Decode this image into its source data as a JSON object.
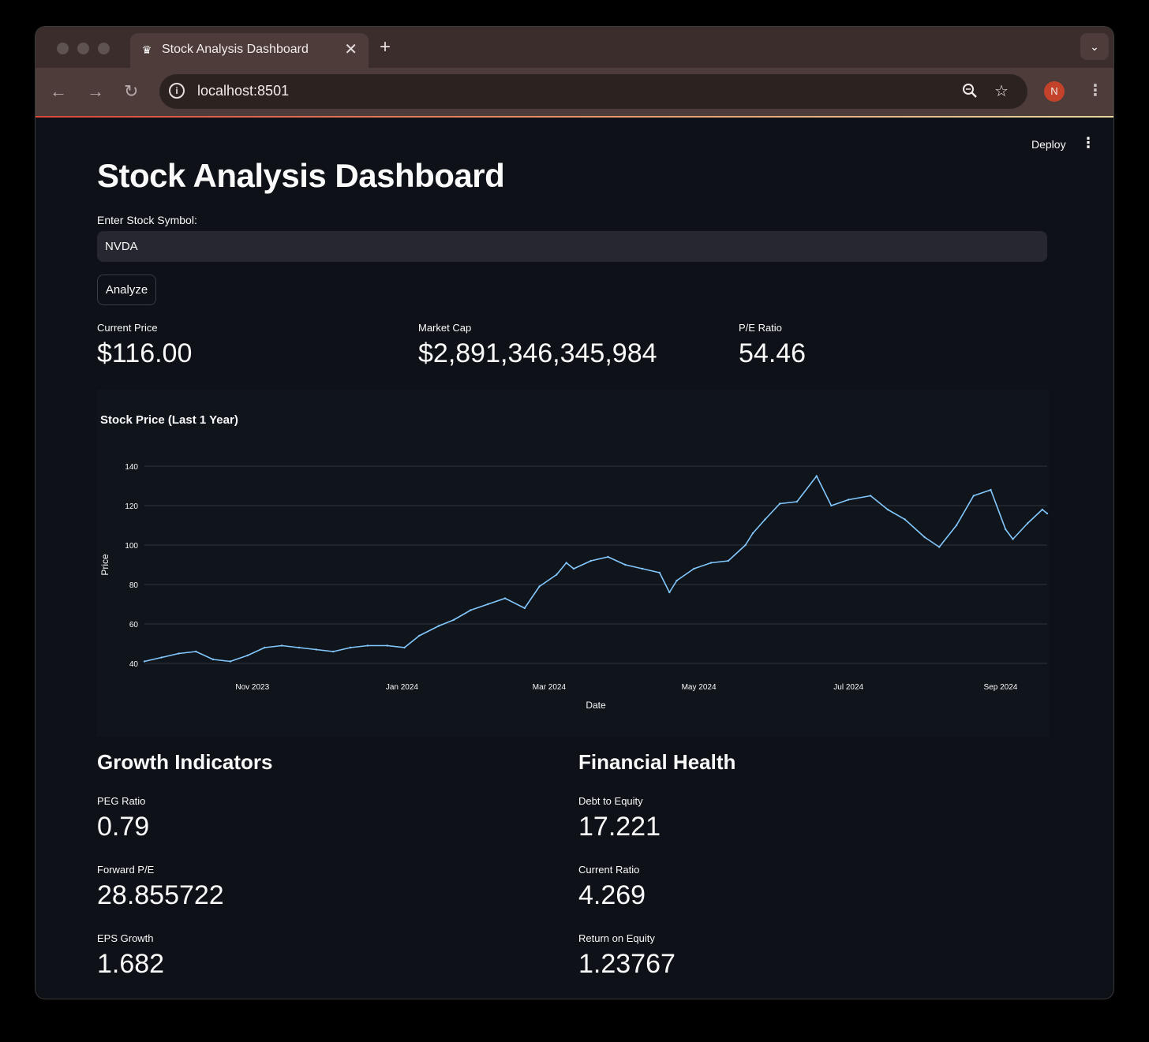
{
  "browser": {
    "tab_title": "Stock Analysis Dashboard",
    "url": "localhost:8501",
    "profile_initial": "N",
    "icons": [
      "back-arrow-icon",
      "forward-arrow-icon",
      "reload-icon",
      "site-info-icon",
      "zoom-icon",
      "bookmark-star-icon",
      "menu-kebab-icon",
      "tab-close-icon",
      "new-tab-icon",
      "tab-search-icon"
    ]
  },
  "app": {
    "deploy_label": "Deploy",
    "title": "Stock Analysis Dashboard",
    "symbol_label": "Enter Stock Symbol:",
    "symbol_value": "NVDA",
    "analyze_label": "Analyze"
  },
  "metrics": {
    "current_price": {
      "label": "Current Price",
      "value": "$116.00"
    },
    "market_cap": {
      "label": "Market Cap",
      "value": "$2,891,346,345,984"
    },
    "pe_ratio": {
      "label": "P/E Ratio",
      "value": "54.46"
    }
  },
  "growth": {
    "heading": "Growth Indicators",
    "peg": {
      "label": "PEG Ratio",
      "value": "0.79"
    },
    "forward_pe": {
      "label": "Forward P/E",
      "value": "28.855722"
    },
    "eps_growth": {
      "label": "EPS Growth",
      "value": "1.682"
    }
  },
  "health": {
    "heading": "Financial Health",
    "debt_equity": {
      "label": "Debt to Equity",
      "value": "17.221"
    },
    "current_ratio": {
      "label": "Current Ratio",
      "value": "4.269"
    },
    "roe": {
      "label": "Return on Equity",
      "value": "1.23767"
    }
  },
  "chart_data": {
    "type": "line",
    "title": "Stock Price (Last 1 Year)",
    "xlabel": "Date",
    "ylabel": "Price",
    "x_range": [
      "2023-09-18",
      "2024-09-20"
    ],
    "ylim": [
      40,
      140
    ],
    "yticks": [
      40,
      60,
      80,
      100,
      120,
      140
    ],
    "xticks": [
      {
        "date": "2023-11-01",
        "label": "Nov 2023"
      },
      {
        "date": "2024-01-01",
        "label": "Jan 2024"
      },
      {
        "date": "2024-03-01",
        "label": "Mar 2024"
      },
      {
        "date": "2024-05-01",
        "label": "May 2024"
      },
      {
        "date": "2024-07-01",
        "label": "Jul 2024"
      },
      {
        "date": "2024-09-01",
        "label": "Sep 2024"
      }
    ],
    "grid": true,
    "line_color": "#83c9ff",
    "series": [
      {
        "x": [
          "2023-09-18",
          "2023-09-25",
          "2023-10-02",
          "2023-10-09",
          "2023-10-16",
          "2023-10-23",
          "2023-10-30",
          "2023-11-06",
          "2023-11-13",
          "2023-11-20",
          "2023-11-27",
          "2023-12-04",
          "2023-12-11",
          "2023-12-18",
          "2023-12-26",
          "2024-01-02",
          "2024-01-08",
          "2024-01-16",
          "2024-01-22",
          "2024-01-29",
          "2024-02-05",
          "2024-02-12",
          "2024-02-20",
          "2024-02-26",
          "2024-03-04",
          "2024-03-08",
          "2024-03-11",
          "2024-03-18",
          "2024-03-25",
          "2024-04-01",
          "2024-04-08",
          "2024-04-15",
          "2024-04-19",
          "2024-04-22",
          "2024-04-29",
          "2024-05-06",
          "2024-05-13",
          "2024-05-20",
          "2024-05-23",
          "2024-05-28",
          "2024-06-03",
          "2024-06-10",
          "2024-06-18",
          "2024-06-24",
          "2024-07-01",
          "2024-07-10",
          "2024-07-17",
          "2024-07-24",
          "2024-08-01",
          "2024-08-07",
          "2024-08-14",
          "2024-08-21",
          "2024-08-28",
          "2024-09-03",
          "2024-09-06",
          "2024-09-12",
          "2024-09-18",
          "2024-09-20"
        ],
        "y": [
          41,
          43,
          45,
          46,
          42,
          41,
          44,
          48,
          49,
          48,
          47,
          46,
          48,
          49,
          49,
          48,
          54,
          59,
          62,
          67,
          70,
          73,
          68,
          79,
          85,
          91,
          88,
          92,
          94,
          90,
          88,
          86,
          76,
          82,
          88,
          91,
          92,
          100,
          106,
          113,
          121,
          122,
          135,
          120,
          123,
          125,
          118,
          113,
          104,
          99,
          110,
          125,
          128,
          108,
          103,
          111,
          118,
          116
        ]
      }
    ]
  }
}
